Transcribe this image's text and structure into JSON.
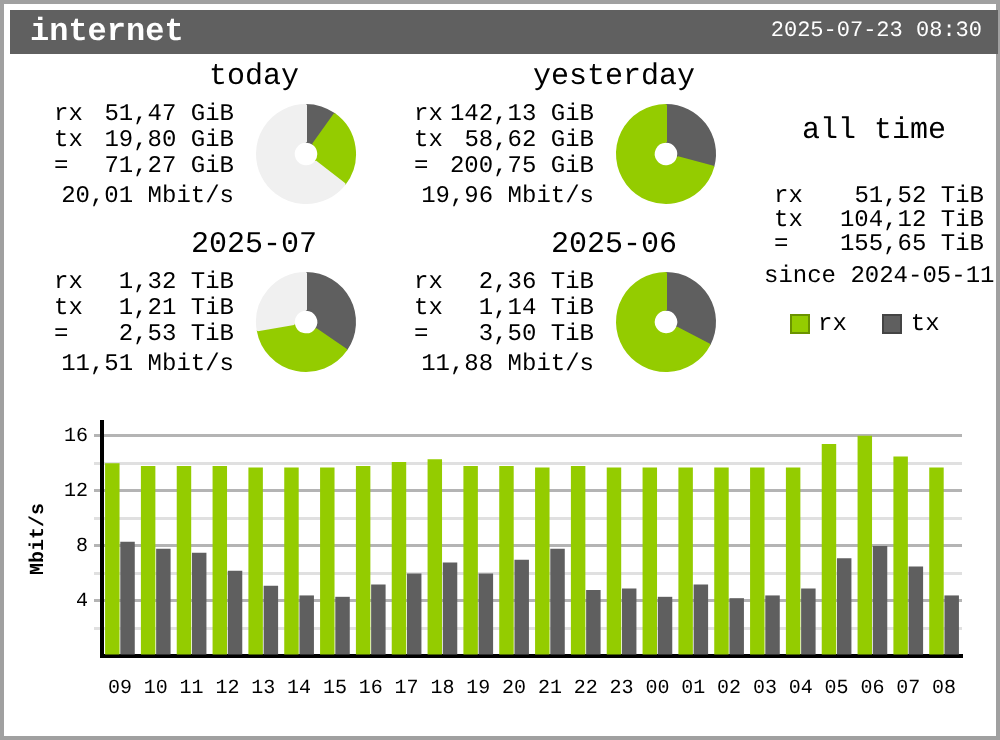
{
  "chart_data": [
    {
      "type": "other",
      "title": "internet",
      "subtitle": "2025-07-23 08:30"
    },
    {
      "type": "donut",
      "title": "today",
      "categories": [
        null,
        null,
        null
      ],
      "values": [
        25.6,
        9.9,
        64.5
      ],
      "colors": [
        "#94cc00",
        "#5f5f5f",
        "#f0f0f0"
      ],
      "annotations": [
        "rx",
        "51,47 GiB",
        "tx",
        "19,80 GiB",
        "=",
        "71,27 GiB",
        "20,01 Mbit/s"
      ]
    },
    {
      "type": "donut",
      "title": "yesterday",
      "categories": [
        null,
        null
      ],
      "values": [
        70.8,
        29.2
      ],
      "colors": [
        "#94cc00",
        "#5f5f5f"
      ],
      "annotations": [
        "rx",
        "142,13 GiB",
        "tx",
        "58,62 GiB",
        "=",
        "200,75 GiB",
        "19,96 Mbit/s"
      ]
    },
    {
      "type": "donut",
      "title": "2025-07",
      "categories": [
        null,
        null,
        null
      ],
      "values": [
        37.7,
        34.6,
        27.7
      ],
      "colors": [
        "#94cc00",
        "#5f5f5f",
        "#f0f0f0"
      ],
      "annotations": [
        "rx",
        "1,32 TiB",
        "tx",
        "1,21 TiB",
        "=",
        "2,53 TiB",
        "11,51 Mbit/s"
      ]
    },
    {
      "type": "donut",
      "title": "2025-06",
      "categories": [
        null,
        null
      ],
      "values": [
        67.4,
        32.6
      ],
      "colors": [
        "#94cc00",
        "#5f5f5f"
      ],
      "annotations": [
        "rx",
        "2,36 TiB",
        "tx",
        "1,14 TiB",
        "=",
        "3,50 TiB",
        "11,88 Mbit/s"
      ]
    },
    {
      "type": "other",
      "title": "all time",
      "annotations": [
        "rx",
        "51,52 TiB",
        "tx",
        "104,12 TiB",
        "=",
        "155,65 TiB",
        "since 2024-05-11"
      ]
    },
    {
      "type": "bar",
      "ylabel": "Mbit/s",
      "categories": [
        "09",
        "10",
        "11",
        "12",
        "13",
        "14",
        "15",
        "16",
        "17",
        "18",
        "19",
        "20",
        "21",
        "22",
        "23",
        "00",
        "01",
        "02",
        "03",
        "04",
        "05",
        "06",
        "07",
        "08"
      ],
      "series": [
        {
          "name": "rx",
          "color": "#94cc00",
          "values": [
            14.0,
            13.8,
            13.8,
            13.8,
            13.7,
            13.7,
            13.7,
            13.8,
            14.1,
            14.3,
            13.8,
            13.8,
            13.7,
            13.8,
            13.7,
            13.7,
            13.7,
            13.7,
            13.7,
            13.7,
            15.4,
            16.0,
            14.5,
            13.7
          ]
        },
        {
          "name": "tx",
          "color": "#5f5f5f",
          "values": [
            8.3,
            7.8,
            7.5,
            6.2,
            5.1,
            4.4,
            4.3,
            5.2,
            6.0,
            6.8,
            6.0,
            7.0,
            7.8,
            4.8,
            4.9,
            4.3,
            5.2,
            4.2,
            4.4,
            4.9,
            7.1,
            8.0,
            6.5,
            4.4
          ]
        }
      ],
      "ylim": [
        0,
        17
      ],
      "yticks": [
        {
          "value": 0,
          "label": null
        },
        {
          "value": 2,
          "label": null
        },
        4,
        {
          "value": 6,
          "label": null
        },
        8,
        {
          "value": 10,
          "label": null
        },
        12,
        {
          "value": 14,
          "label": null
        },
        16
      ],
      "grid": "y",
      "legend": "top right"
    }
  ]
}
